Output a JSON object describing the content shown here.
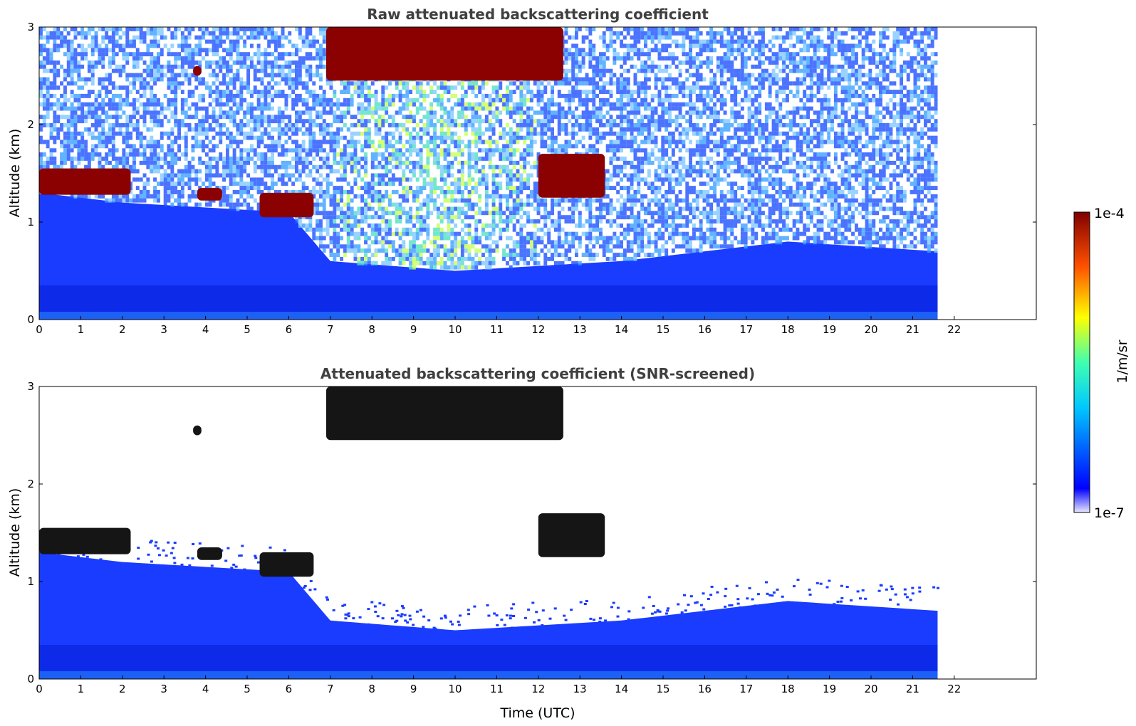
{
  "chart_data": [
    {
      "type": "heatmap",
      "title": "Raw attenuated backscattering coefficient",
      "xlabel": "",
      "ylabel": "Altitude (km)",
      "xlim": [
        0,
        24
      ],
      "ylim": [
        0,
        3
      ],
      "x_ticks": [
        "0",
        "1",
        "2",
        "3",
        "4",
        "5",
        "6",
        "7",
        "8",
        "9",
        "10",
        "11",
        "12",
        "13",
        "14",
        "15",
        "16",
        "17",
        "18",
        "19",
        "20",
        "21",
        "22"
      ],
      "y_ticks": [
        "0",
        "1",
        "2",
        "3"
      ],
      "data_extent_hours": [
        0,
        21.6
      ],
      "boundary_layer_top_km": [
        {
          "x": 0,
          "y": 1.3
        },
        {
          "x": 2,
          "y": 1.2
        },
        {
          "x": 4,
          "y": 1.15
        },
        {
          "x": 6,
          "y": 1.1
        },
        {
          "x": 7,
          "y": 0.6
        },
        {
          "x": 10,
          "y": 0.5
        },
        {
          "x": 14,
          "y": 0.6
        },
        {
          "x": 18,
          "y": 0.8
        },
        {
          "x": 21.6,
          "y": 0.7
        }
      ],
      "cloud_layers": [
        {
          "start": 0.0,
          "end": 2.2,
          "base_km": 1.28,
          "top_km": 1.55
        },
        {
          "start": 3.8,
          "end": 4.4,
          "base_km": 1.22,
          "top_km": 1.35
        },
        {
          "start": 5.3,
          "end": 6.6,
          "base_km": 1.05,
          "top_km": 1.3
        },
        {
          "start": 6.9,
          "end": 12.6,
          "base_km": 2.45,
          "top_km": 3.0
        },
        {
          "start": 12.0,
          "end": 13.6,
          "base_km": 1.25,
          "top_km": 1.7
        },
        {
          "start": 3.7,
          "end": 3.9,
          "base_km": 2.5,
          "top_km": 2.6
        }
      ]
    },
    {
      "type": "heatmap",
      "title": "Attenuated backscattering coefficient (SNR-screened)",
      "xlabel": "Time (UTC)",
      "ylabel": "Altitude (km)",
      "xlim": [
        0,
        24
      ],
      "ylim": [
        0,
        3
      ],
      "x_ticks": [
        "0",
        "1",
        "2",
        "3",
        "4",
        "5",
        "6",
        "7",
        "8",
        "9",
        "10",
        "11",
        "12",
        "13",
        "14",
        "15",
        "16",
        "17",
        "18",
        "19",
        "20",
        "21",
        "22"
      ],
      "y_ticks": [
        "0",
        "1",
        "2",
        "3"
      ],
      "data_extent_hours": [
        0,
        21.6
      ]
    }
  ],
  "colorbar": {
    "label": "1/m/sr",
    "max_label": "1e-4",
    "min_label": "1e-7",
    "scale": "log",
    "range": [
      1e-07,
      0.0001
    ],
    "colormap": "jet"
  }
}
